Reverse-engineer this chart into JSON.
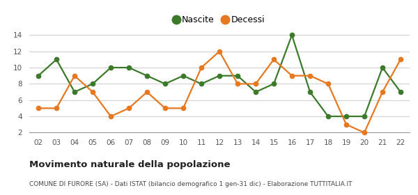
{
  "years": [
    2,
    3,
    4,
    5,
    6,
    7,
    8,
    9,
    10,
    11,
    12,
    13,
    14,
    15,
    16,
    17,
    18,
    19,
    20,
    21,
    22
  ],
  "nascite": [
    9,
    11,
    7,
    8,
    10,
    10,
    9,
    8,
    9,
    8,
    9,
    9,
    7,
    8,
    14,
    7,
    4,
    4,
    4,
    10,
    7
  ],
  "decessi": [
    5,
    5,
    9,
    7,
    4,
    5,
    7,
    5,
    5,
    10,
    12,
    8,
    8,
    11,
    9,
    9,
    8,
    3,
    2,
    7,
    11
  ],
  "nascite_color": "#3a7a2a",
  "decessi_color": "#e87820",
  "legend_nascite": "Nascite",
  "legend_decessi": "Decessi",
  "title": "Movimento naturale della popolazione",
  "subtitle": "COMUNE DI FURORE (SA) - Dati ISTAT (bilancio demografico 1 gen-31 dic) - Elaborazione TUTTITALIA.IT",
  "ylim": [
    2,
    14
  ],
  "yticks": [
    2,
    4,
    6,
    8,
    10,
    12,
    14
  ],
  "background_color": "#ffffff",
  "grid_color": "#d0d0d0",
  "marker_size": 4.5,
  "line_width": 1.6
}
